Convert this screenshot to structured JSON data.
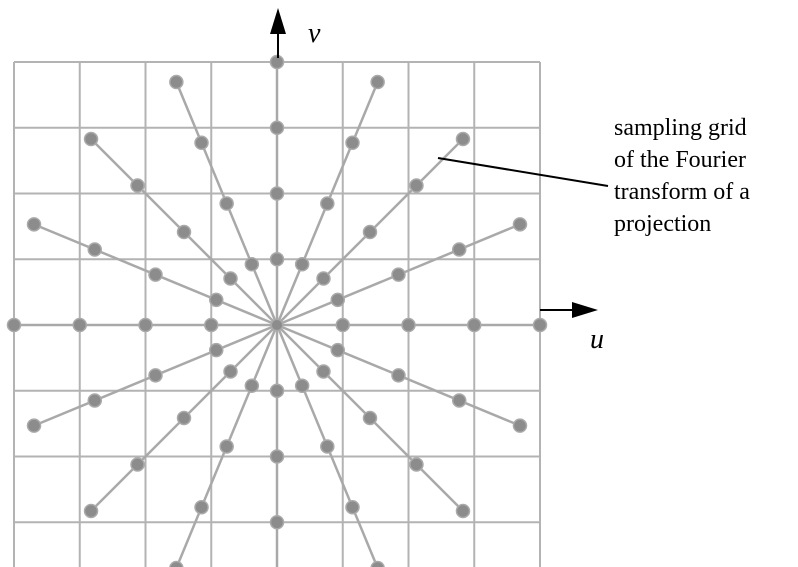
{
  "axes": {
    "vertical_label": "v",
    "horizontal_label": "u"
  },
  "annotation": {
    "lines": [
      "sampling grid",
      "of the Fourier",
      "transform of a",
      "projection"
    ]
  },
  "figure": {
    "grid_cells": 8,
    "radial_lines": 16,
    "samples_per_ray": 4,
    "grid_color": "#b3b3b3",
    "line_color": "#a9a9a9",
    "dot_color": "#8c8c8c",
    "axis_color": "#000000"
  }
}
